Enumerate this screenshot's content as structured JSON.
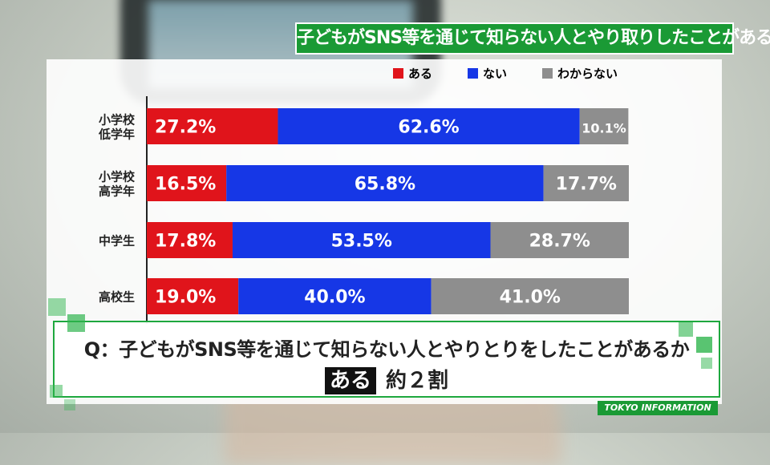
{
  "title": "子どもがSNS等を通じて知らない人とやり取りしたことがあるか",
  "legend": [
    {
      "name": "ある",
      "color": "#e0141b"
    },
    {
      "name": "ない",
      "color": "#1637e6"
    },
    {
      "name": "わからない",
      "color": "#8e8e8e"
    }
  ],
  "chart_data": {
    "type": "bar",
    "orientation": "horizontal",
    "stacked": true,
    "normalized_percent": true,
    "categories": [
      [
        "小学校",
        "低学年"
      ],
      [
        "小学校",
        "高学年"
      ],
      [
        "中学生"
      ],
      [
        "高校生"
      ]
    ],
    "series": [
      {
        "name": "ある",
        "color": "#e0141b",
        "values": [
          27.2,
          16.5,
          17.8,
          19.0
        ],
        "labels": [
          "27.2%",
          "16.5%",
          "17.8%",
          "19.0%"
        ]
      },
      {
        "name": "ない",
        "color": "#1637e6",
        "values": [
          62.6,
          65.8,
          53.5,
          40.0
        ],
        "labels": [
          "62.6%",
          "65.8%",
          "53.5%",
          "40.0%"
        ]
      },
      {
        "name": "わからない",
        "color": "#8e8e8e",
        "values": [
          10.1,
          17.7,
          28.7,
          41.0
        ],
        "labels": [
          "10.1%",
          "17.7%",
          "28.7%",
          "41.0%"
        ]
      }
    ],
    "xlim": [
      0,
      100
    ],
    "legend_position": "top-right"
  },
  "question": {
    "text": "Q：子どもがSNS等を通じて知らない人とやりとりをしたことがあるか",
    "answer_badge": "ある",
    "answer_text": "約２割"
  },
  "source": "TOKYO INFORMATION"
}
